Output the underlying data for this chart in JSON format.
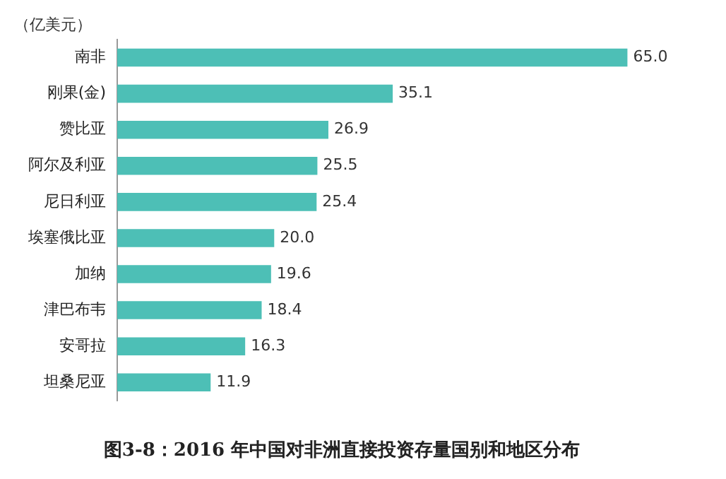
{
  "chart_data": {
    "type": "bar",
    "orientation": "horizontal",
    "title": "图3-8：2016 年中国对非洲直接投资存量国别和地区分布",
    "annotations": [
      "（亿美元）"
    ],
    "categories": [
      "南非",
      "刚果(金)",
      "赞比亚",
      "阿尔及利亚",
      "尼日利亚",
      "埃塞俄比亚",
      "加纳",
      "津巴布韦",
      "安哥拉",
      "坦桑尼亚"
    ],
    "values": [
      65.0,
      35.1,
      26.9,
      25.5,
      25.4,
      20.0,
      19.6,
      18.4,
      16.3,
      11.9
    ],
    "value_labels": [
      "65.0",
      "35.1",
      "26.9",
      "25.5",
      "25.4",
      "20.0",
      "19.6",
      "18.4",
      "16.3",
      "11.9"
    ],
    "color": "#4dbfb6",
    "tick_labels": "y",
    "legend": false
  }
}
